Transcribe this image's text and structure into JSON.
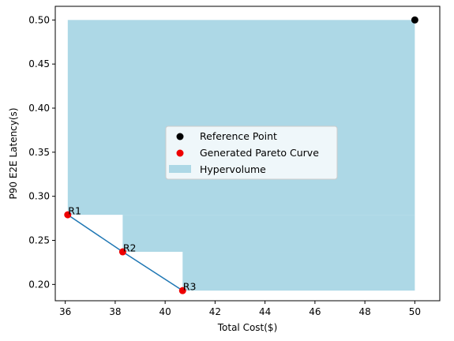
{
  "chart_data": {
    "type": "scatter",
    "title": "",
    "xlabel": "Total Cost($)",
    "ylabel": "P90 E2E Latency(s)",
    "xlim": [
      35.6,
      51.0
    ],
    "ylim": [
      0.1815,
      0.5155
    ],
    "xticks": [
      36,
      38,
      40,
      42,
      44,
      46,
      48,
      50
    ],
    "yticks": [
      0.2,
      0.25,
      0.3,
      0.35,
      0.4,
      0.45,
      0.5
    ],
    "xtick_labels": [
      "36",
      "38",
      "40",
      "42",
      "44",
      "46",
      "48",
      "50"
    ],
    "ytick_labels": [
      "0.20",
      "0.25",
      "0.30",
      "0.35",
      "0.40",
      "0.45",
      "0.50"
    ],
    "grid": false,
    "legend_position": "center",
    "reference_point": {
      "name": "Reference Point",
      "x": 50.0,
      "y": 0.5,
      "color": "#000000"
    },
    "pareto_points": {
      "name": "Generated Pareto Curve",
      "color": "#ee0000",
      "line_color": "#1f77b4",
      "points": [
        {
          "label": "R1",
          "x": 36.1,
          "y": 0.279
        },
        {
          "label": "R2",
          "x": 38.3,
          "y": 0.237
        },
        {
          "label": "R3",
          "x": 40.7,
          "y": 0.193
        }
      ]
    },
    "hypervolume": {
      "name": "Hypervolume",
      "color": "#add8e6"
    }
  }
}
